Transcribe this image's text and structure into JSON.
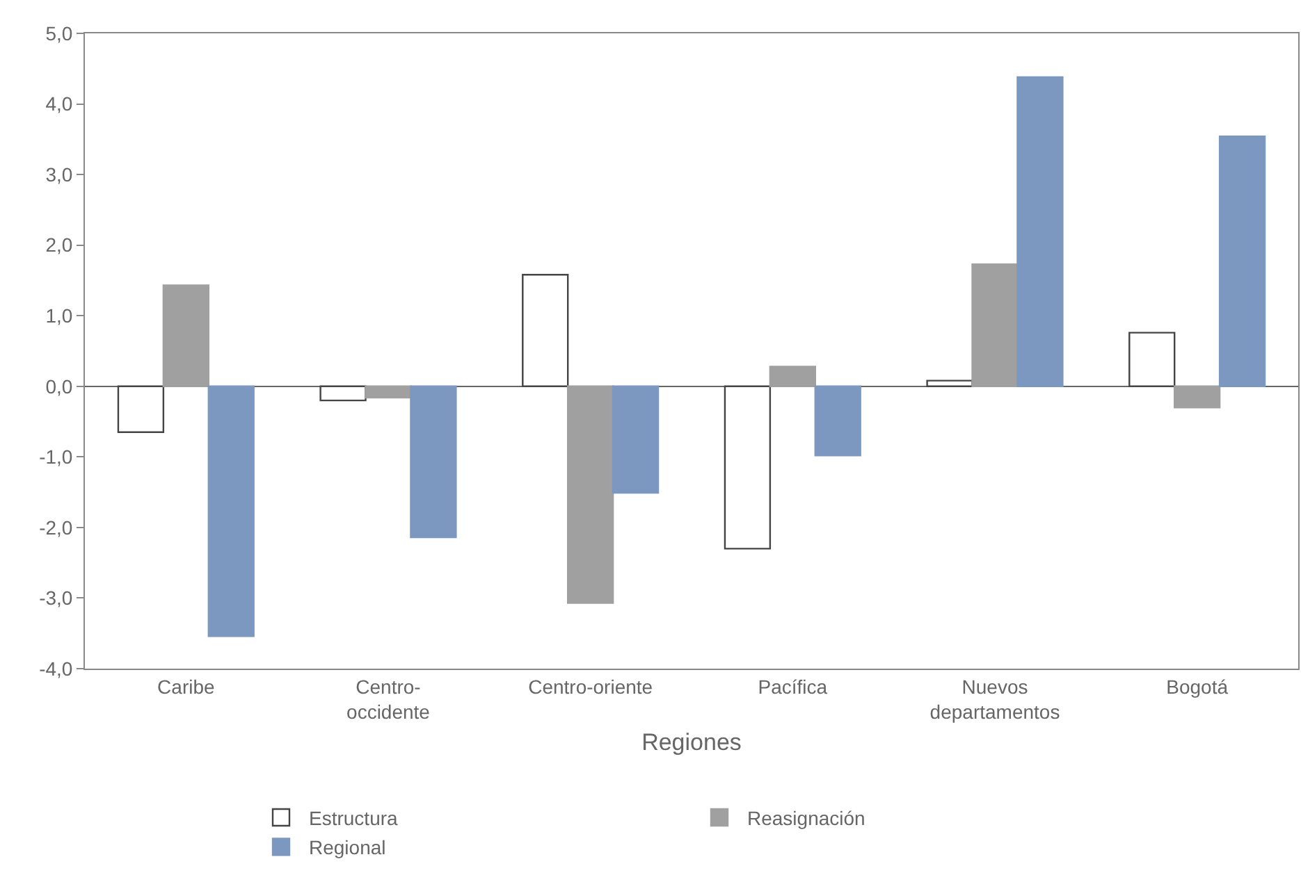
{
  "chart_data": {
    "type": "bar",
    "xlabel": "Regiones",
    "categories": [
      "Caribe",
      "Centro-\noccidente",
      "Centro-oriente",
      "Pacífica",
      "Nuevos\ndepartamentos",
      "Bogotá"
    ],
    "series": [
      {
        "name": "Estructura",
        "color": "#ffffff",
        "values": [
          -0.65,
          -0.2,
          1.58,
          -2.3,
          0.08,
          0.76
        ]
      },
      {
        "name": "Reasignación",
        "color": "#a0a0a0",
        "values": [
          1.43,
          -0.16,
          -3.07,
          0.28,
          1.73,
          -0.3
        ]
      },
      {
        "name": "Regional",
        "color": "#7c97c0",
        "values": [
          -3.54,
          -2.14,
          -1.51,
          -0.98,
          4.38,
          3.54
        ]
      }
    ],
    "ylim": [
      -4,
      5
    ],
    "yticks": [
      {
        "value": -4,
        "label": "-4,0"
      },
      {
        "value": -3,
        "label": "-3,0"
      },
      {
        "value": -2,
        "label": "-2,0"
      },
      {
        "value": -1,
        "label": "-1,0"
      },
      {
        "value": 0,
        "label": "0,0"
      },
      {
        "value": 1,
        "label": "1,0"
      },
      {
        "value": 2,
        "label": "2,0"
      },
      {
        "value": 3,
        "label": "3,0"
      },
      {
        "value": 4,
        "label": "4,0"
      },
      {
        "value": 5,
        "label": "5,0"
      }
    ],
    "legend": "bottom"
  }
}
